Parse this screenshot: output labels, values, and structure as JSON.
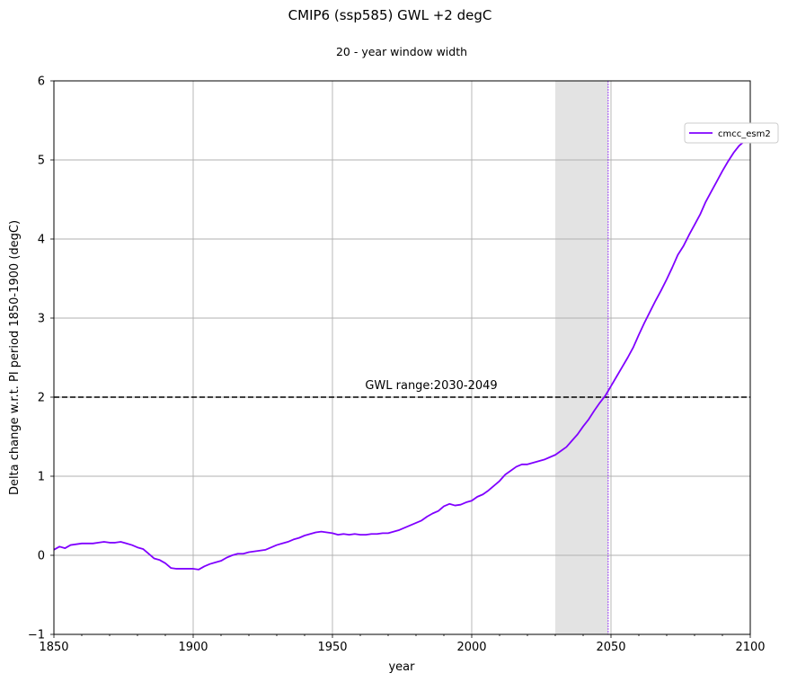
{
  "chart_data": {
    "type": "line",
    "title": "CMIP6 (ssp585) GWL +2 degC",
    "subtitle": "20 - year window width",
    "xlabel": "year",
    "ylabel": "Delta change w.r.t. PI period 1850-1900 (degC)",
    "xlim": [
      1850,
      2100
    ],
    "ylim": [
      -1,
      6
    ],
    "xticks": [
      1850,
      1900,
      1950,
      2000,
      2050,
      2100
    ],
    "yticks": [
      -1,
      0,
      1,
      2,
      3,
      4,
      5,
      6
    ],
    "grid": true,
    "legend_position": "upper-right",
    "threshold": {
      "value": 2,
      "style": "dashed",
      "color": "#000000"
    },
    "gwl_window": {
      "start": 2030,
      "end": 2049,
      "label": "GWL range:2030-2049",
      "shade_color": "#e3e3e3",
      "crossing_year": 2049
    },
    "series": [
      {
        "name": "cmcc_esm2",
        "color": "#8000ff",
        "x": [
          1850,
          1852,
          1854,
          1856,
          1858,
          1860,
          1862,
          1864,
          1866,
          1868,
          1870,
          1872,
          1874,
          1876,
          1878,
          1880,
          1882,
          1884,
          1886,
          1888,
          1890,
          1892,
          1894,
          1896,
          1898,
          1900,
          1902,
          1904,
          1906,
          1908,
          1910,
          1912,
          1914,
          1916,
          1918,
          1920,
          1922,
          1924,
          1926,
          1928,
          1930,
          1932,
          1934,
          1936,
          1938,
          1940,
          1942,
          1944,
          1946,
          1948,
          1950,
          1952,
          1954,
          1956,
          1958,
          1960,
          1962,
          1964,
          1966,
          1968,
          1970,
          1972,
          1974,
          1976,
          1978,
          1980,
          1982,
          1984,
          1986,
          1988,
          1990,
          1992,
          1994,
          1996,
          1998,
          2000,
          2002,
          2004,
          2006,
          2008,
          2010,
          2012,
          2014,
          2016,
          2018,
          2020,
          2022,
          2024,
          2026,
          2028,
          2030,
          2032,
          2034,
          2036,
          2038,
          2040,
          2042,
          2044,
          2046,
          2048,
          2050,
          2052,
          2054,
          2056,
          2058,
          2060,
          2062,
          2064,
          2066,
          2068,
          2070,
          2072,
          2074,
          2076,
          2078,
          2080,
          2082,
          2084,
          2086,
          2088,
          2090,
          2092,
          2094,
          2096,
          2098,
          2100
        ],
        "y": [
          0.07,
          0.11,
          0.09,
          0.13,
          0.14,
          0.15,
          0.15,
          0.15,
          0.16,
          0.17,
          0.16,
          0.16,
          0.17,
          0.15,
          0.13,
          0.1,
          0.08,
          0.02,
          -0.04,
          -0.06,
          -0.1,
          -0.16,
          -0.17,
          -0.17,
          -0.17,
          -0.17,
          -0.18,
          -0.14,
          -0.11,
          -0.09,
          -0.07,
          -0.03,
          0.0,
          0.02,
          0.02,
          0.04,
          0.05,
          0.06,
          0.07,
          0.1,
          0.13,
          0.15,
          0.17,
          0.2,
          0.22,
          0.25,
          0.27,
          0.29,
          0.3,
          0.29,
          0.28,
          0.26,
          0.27,
          0.26,
          0.27,
          0.26,
          0.26,
          0.27,
          0.27,
          0.28,
          0.28,
          0.3,
          0.32,
          0.35,
          0.38,
          0.41,
          0.44,
          0.49,
          0.53,
          0.56,
          0.62,
          0.65,
          0.63,
          0.64,
          0.67,
          0.69,
          0.74,
          0.77,
          0.82,
          0.88,
          0.94,
          1.02,
          1.07,
          1.12,
          1.15,
          1.15,
          1.17,
          1.19,
          1.21,
          1.24,
          1.27,
          1.32,
          1.37,
          1.45,
          1.53,
          1.63,
          1.72,
          1.83,
          1.93,
          2.02,
          2.14,
          2.26,
          2.38,
          2.5,
          2.63,
          2.79,
          2.94,
          3.08,
          3.22,
          3.35,
          3.49,
          3.64,
          3.8,
          3.91,
          4.05,
          4.18,
          4.31,
          4.47,
          4.6,
          4.73,
          4.86,
          4.98,
          5.09,
          5.18,
          5.24,
          5.3
        ]
      }
    ]
  }
}
